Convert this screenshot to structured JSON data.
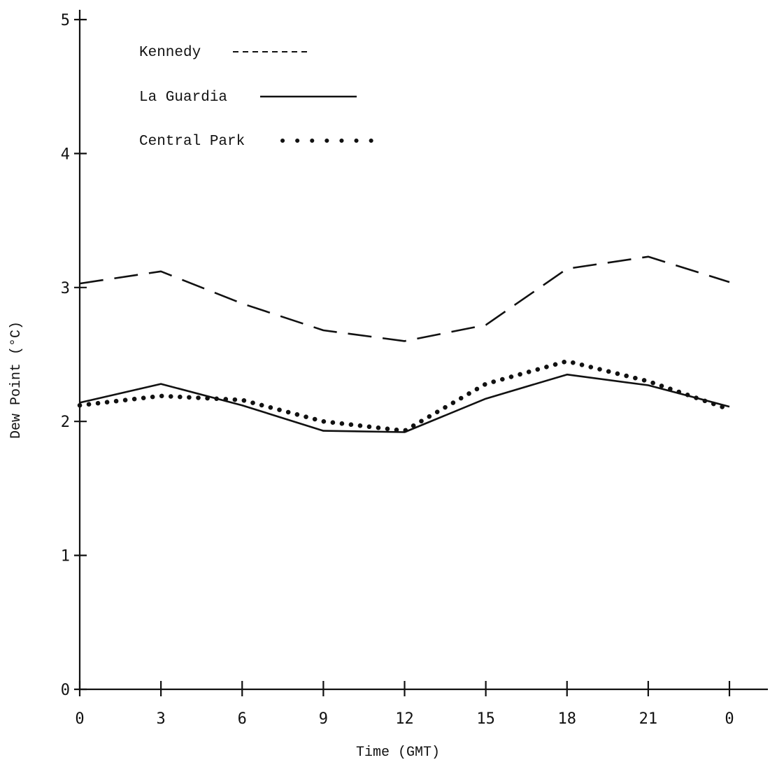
{
  "chart_data": {
    "type": "line",
    "xlabel": "Time (GMT)",
    "ylabel": "Dew Point (°C)",
    "x": [
      0,
      3,
      6,
      9,
      12,
      15,
      18,
      21,
      24
    ],
    "x_tick_labels": [
      "0",
      "3",
      "6",
      "9",
      "12",
      "15",
      "18",
      "21",
      "0"
    ],
    "y_ticks": [
      0,
      1,
      2,
      3,
      4,
      5
    ],
    "y_tick_labels": [
      "0",
      "1",
      "2",
      "3",
      "4",
      "5"
    ],
    "xlim": [
      0,
      24
    ],
    "ylim": [
      0,
      5
    ],
    "grid": false,
    "legend_position": "top-left",
    "series": [
      {
        "name": "Kennedy",
        "style": "dashed",
        "color": "#111111",
        "values": [
          3.03,
          3.12,
          2.88,
          2.68,
          2.6,
          2.72,
          3.14,
          3.23,
          3.04
        ]
      },
      {
        "name": "La Guardia",
        "style": "solid",
        "color": "#111111",
        "values": [
          2.14,
          2.28,
          2.12,
          1.93,
          1.92,
          2.17,
          2.35,
          2.27,
          2.11
        ]
      },
      {
        "name": "Central Park",
        "style": "dotted",
        "color": "#111111",
        "values": [
          2.12,
          2.19,
          2.16,
          2.0,
          1.93,
          2.28,
          2.45,
          2.3,
          2.09
        ]
      }
    ]
  }
}
